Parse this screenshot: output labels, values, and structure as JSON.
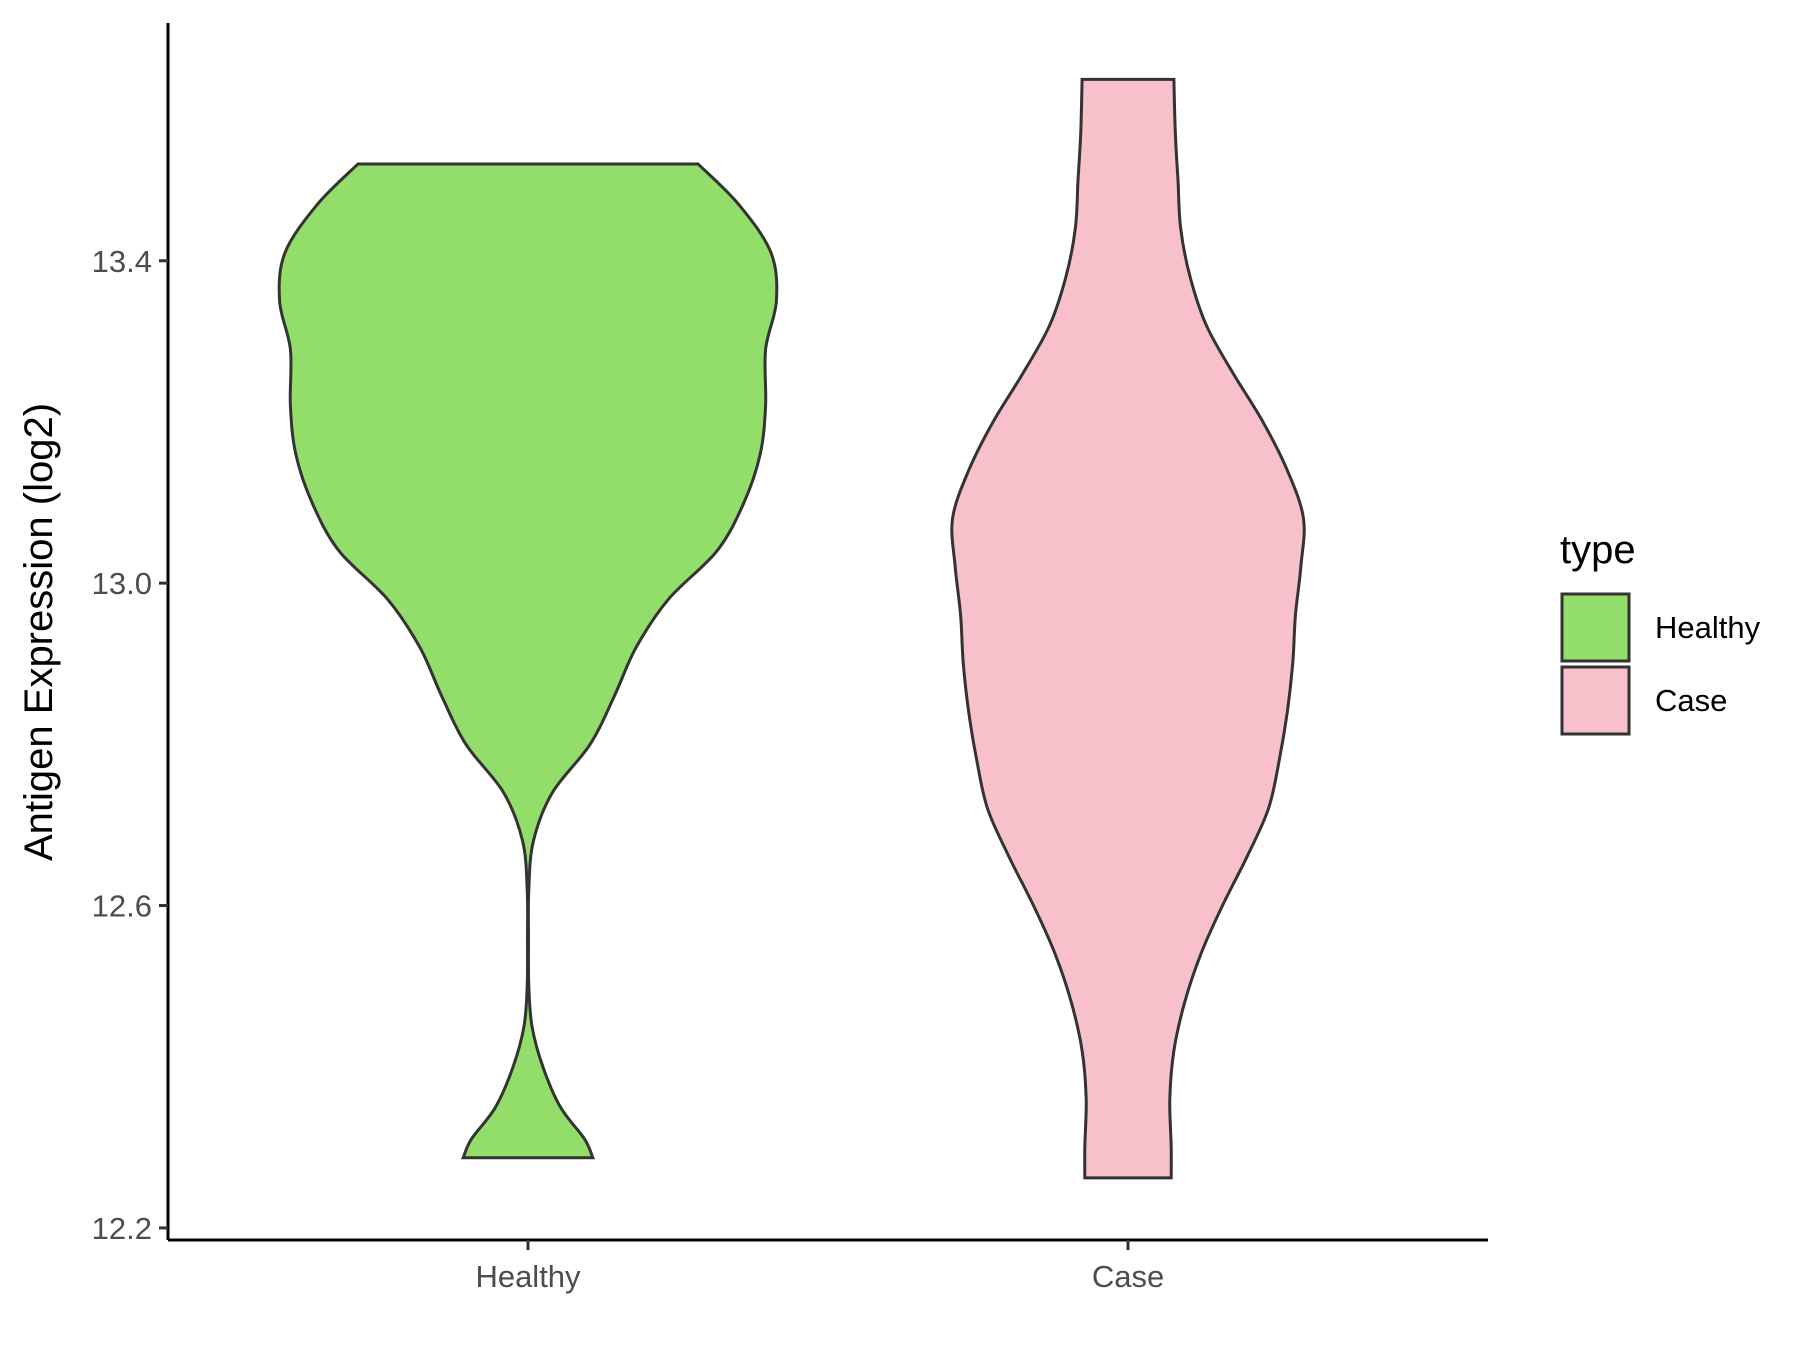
{
  "chart_data": {
    "type": "violin",
    "title": "",
    "xlabel": "",
    "ylabel": "Antigen Expression (log2)",
    "ylim": [
      12.185,
      13.695
    ],
    "yticks": [
      12.2,
      12.6,
      13.0,
      13.4
    ],
    "ytick_labels": [
      "12.2",
      "12.6",
      "13.0",
      "13.4"
    ],
    "categories": [
      "Healthy",
      "Case"
    ],
    "legend": {
      "title": "type",
      "position": "right",
      "entries": [
        {
          "label": "Healthy",
          "color": "#93DD6A"
        },
        {
          "label": "Case",
          "color": "#F7C0CB"
        }
      ]
    },
    "series": [
      {
        "name": "Healthy",
        "color": "#93DD6A",
        "y": [
          12.287,
          12.31,
          12.35,
          12.4,
          12.45,
          12.5,
          12.56,
          12.62,
          12.68,
          12.74,
          12.8,
          12.86,
          12.92,
          12.98,
          13.04,
          13.1,
          13.16,
          13.22,
          13.29,
          13.35,
          13.41,
          13.47,
          13.52
        ],
        "density": [
          0.24,
          0.21,
          0.12,
          0.055,
          0.015,
          0.003,
          0.002,
          0.003,
          0.02,
          0.09,
          0.23,
          0.32,
          0.4,
          0.52,
          0.7,
          0.8,
          0.86,
          0.88,
          0.88,
          0.92,
          0.9,
          0.78,
          0.63
        ]
      },
      {
        "name": "Case",
        "color": "#F7C0CB",
        "y": [
          12.262,
          12.3,
          12.36,
          12.42,
          12.48,
          12.54,
          12.6,
          12.66,
          12.72,
          12.78,
          12.84,
          12.9,
          12.96,
          13.02,
          13.08,
          13.14,
          13.2,
          13.26,
          13.32,
          13.38,
          13.44,
          13.5,
          13.56,
          13.625
        ],
        "density": [
          0.16,
          0.16,
          0.155,
          0.17,
          0.21,
          0.27,
          0.35,
          0.44,
          0.52,
          0.56,
          0.59,
          0.61,
          0.62,
          0.64,
          0.65,
          0.59,
          0.5,
          0.39,
          0.29,
          0.23,
          0.195,
          0.185,
          0.175,
          0.17
        ]
      }
    ]
  }
}
